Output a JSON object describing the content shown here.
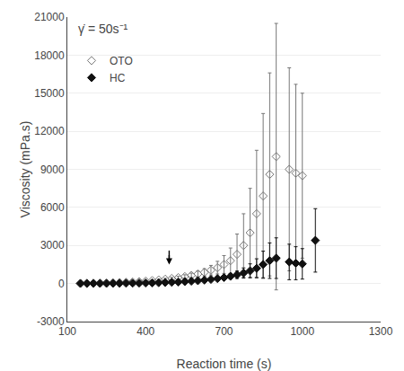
{
  "chart_data": {
    "type": "scatter",
    "annotations": [
      "γ̇ = 50s⁻¹"
    ],
    "xlabel": "Reaction time (s)",
    "ylabel": "Viscosity (mPa.s)",
    "xlim": [
      100,
      1300
    ],
    "ylim": [
      -3000,
      21000
    ],
    "xticks": [
      100,
      400,
      700,
      1000,
      1300
    ],
    "yticks": [
      -3000,
      0,
      3000,
      6000,
      9000,
      12000,
      15000,
      18000,
      21000
    ],
    "grid": "y",
    "legend": "upper left",
    "arrows": [
      {
        "x": 490,
        "y_start": 2600,
        "y_end": 1500
      }
    ],
    "series": [
      {
        "name": "OTO",
        "color": "#777777",
        "marker": "diamond-open",
        "x": [
          150,
          175,
          200,
          225,
          250,
          275,
          300,
          325,
          350,
          375,
          400,
          425,
          450,
          475,
          500,
          525,
          550,
          575,
          600,
          625,
          650,
          675,
          700,
          725,
          750,
          775,
          800,
          825,
          850,
          875,
          900,
          950,
          975,
          1000
        ],
        "values": [
          20,
          25,
          30,
          40,
          50,
          65,
          80,
          100,
          125,
          155,
          190,
          235,
          285,
          340,
          400,
          470,
          550,
          640,
          750,
          880,
          1050,
          1250,
          1500,
          1800,
          2300,
          3000,
          4000,
          5500,
          6900,
          8600,
          10000,
          9000,
          8700,
          8500
        ],
        "yerr": [
          5,
          5,
          5,
          5,
          8,
          10,
          12,
          15,
          20,
          25,
          30,
          40,
          55,
          70,
          90,
          110,
          140,
          180,
          230,
          290,
          380,
          500,
          700,
          1000,
          1600,
          2500,
          3500,
          5000,
          6500,
          8000,
          10500,
          8000,
          7000,
          6500
        ]
      },
      {
        "name": "HC",
        "color": "#111111",
        "marker": "diamond",
        "x": [
          150,
          175,
          200,
          225,
          250,
          275,
          300,
          325,
          350,
          375,
          400,
          425,
          450,
          475,
          500,
          525,
          550,
          575,
          600,
          625,
          650,
          675,
          700,
          725,
          750,
          775,
          800,
          825,
          850,
          875,
          900,
          950,
          975,
          1000,
          1050
        ],
        "values": [
          5,
          5,
          8,
          10,
          12,
          15,
          18,
          22,
          28,
          35,
          42,
          52,
          65,
          80,
          100,
          120,
          150,
          185,
          225,
          270,
          325,
          390,
          470,
          570,
          690,
          830,
          1000,
          1200,
          1500,
          1800,
          2000,
          1700,
          1600,
          1550,
          3400
        ],
        "yerr": [
          3,
          3,
          3,
          3,
          3,
          3,
          4,
          5,
          6,
          7,
          8,
          10,
          12,
          16,
          20,
          25,
          32,
          40,
          50,
          65,
          80,
          110,
          150,
          200,
          290,
          400,
          550,
          750,
          1050,
          1400,
          1600,
          1400,
          1300,
          1200,
          2500
        ]
      }
    ]
  }
}
